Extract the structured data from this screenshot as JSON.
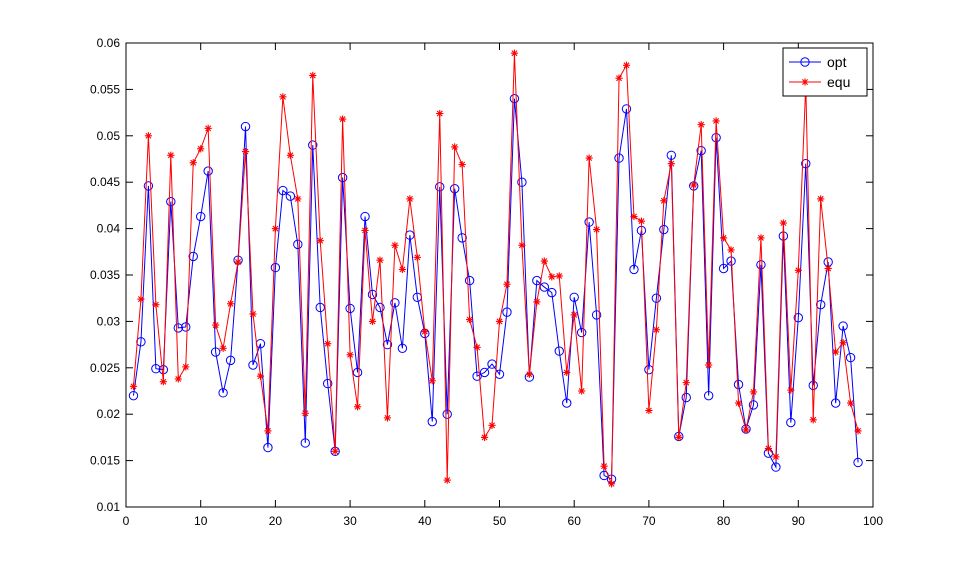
{
  "chart_data": {
    "type": "line",
    "title": "",
    "xlabel": "",
    "ylabel": "",
    "xlim": [
      0,
      100
    ],
    "ylim": [
      0.01,
      0.06
    ],
    "x_ticks": [
      0,
      10,
      20,
      30,
      40,
      50,
      60,
      70,
      80,
      90,
      100
    ],
    "y_ticks": [
      0.01,
      0.015,
      0.02,
      0.025,
      0.03,
      0.035,
      0.04,
      0.045,
      0.05,
      0.055,
      0.06
    ],
    "x_tick_labels": [
      "0",
      "10",
      "20",
      "30",
      "40",
      "50",
      "60",
      "70",
      "80",
      "90",
      "100"
    ],
    "y_tick_labels": [
      "0.01",
      "0.015",
      "0.02",
      "0.025",
      "0.03",
      "0.035",
      "0.04",
      "0.045",
      "0.05",
      "0.055",
      "0.06"
    ],
    "grid": false,
    "legend_position": "top-right",
    "series": [
      {
        "name": "opt",
        "color": "#0000ff",
        "marker": "circle",
        "values": [
          0.022,
          0.0278,
          0.0446,
          0.0249,
          0.0248,
          0.0429,
          0.0293,
          0.0294,
          0.037,
          0.0413,
          0.0462,
          0.0267,
          0.0223,
          0.0258,
          0.0366,
          0.051,
          0.0253,
          0.0276,
          0.0164,
          0.0358,
          0.0441,
          0.0435,
          0.0383,
          0.0169,
          0.049,
          0.0315,
          0.0233,
          0.016,
          0.0455,
          0.0314,
          0.0245,
          0.0413,
          0.0329,
          0.0315,
          0.0275,
          0.032,
          0.0271,
          0.0393,
          0.0326,
          0.0287,
          0.0192,
          0.0445,
          0.02,
          0.0443,
          0.039,
          0.0344,
          0.0241,
          0.0245,
          0.0254,
          0.0243,
          0.031,
          0.054,
          0.045,
          0.024,
          0.0344,
          0.0337,
          0.0331,
          0.0268,
          0.0212,
          0.0326,
          0.0288,
          0.0407,
          0.0307,
          0.0134,
          0.013,
          0.0476,
          0.0529,
          0.0356,
          0.0398,
          0.0248,
          0.0325,
          0.0399,
          0.0479,
          0.0176,
          0.0218,
          0.0446,
          0.0484,
          0.022,
          0.0498,
          0.0357,
          0.0365,
          0.0232,
          0.0184,
          0.021,
          0.0361,
          0.0158,
          0.0143,
          0.0392,
          0.0191,
          0.0304,
          0.047,
          0.0231,
          0.0318,
          0.0364,
          0.0212,
          0.0295,
          0.0261,
          0.0148
        ]
      },
      {
        "name": "equ",
        "color": "#ff0000",
        "marker": "star",
        "values": [
          0.023,
          0.0324,
          0.05,
          0.0318,
          0.0235,
          0.0479,
          0.0238,
          0.0251,
          0.0471,
          0.0486,
          0.0508,
          0.0296,
          0.0271,
          0.0319,
          0.0364,
          0.0483,
          0.0308,
          0.0241,
          0.0182,
          0.04,
          0.0542,
          0.0479,
          0.0432,
          0.0201,
          0.0565,
          0.0387,
          0.0276,
          0.016,
          0.0518,
          0.0264,
          0.0208,
          0.0398,
          0.03,
          0.0366,
          0.0196,
          0.0382,
          0.0356,
          0.0432,
          0.0369,
          0.0289,
          0.0236,
          0.0524,
          0.0129,
          0.0488,
          0.0469,
          0.0302,
          0.0272,
          0.0175,
          0.0188,
          0.03,
          0.034,
          0.0589,
          0.0382,
          0.0243,
          0.0321,
          0.0365,
          0.0348,
          0.0349,
          0.0245,
          0.0307,
          0.0225,
          0.0476,
          0.0399,
          0.0144,
          0.0125,
          0.0562,
          0.0576,
          0.0413,
          0.0408,
          0.0204,
          0.0291,
          0.043,
          0.047,
          0.0175,
          0.0234,
          0.0447,
          0.0512,
          0.0253,
          0.0516,
          0.039,
          0.0377,
          0.0212,
          0.0183,
          0.0224,
          0.039,
          0.0163,
          0.0154,
          0.0406,
          0.0226,
          0.0355,
          0.0555,
          0.0194,
          0.0432,
          0.0357,
          0.0267,
          0.0277,
          0.0212,
          0.0182
        ]
      }
    ]
  }
}
